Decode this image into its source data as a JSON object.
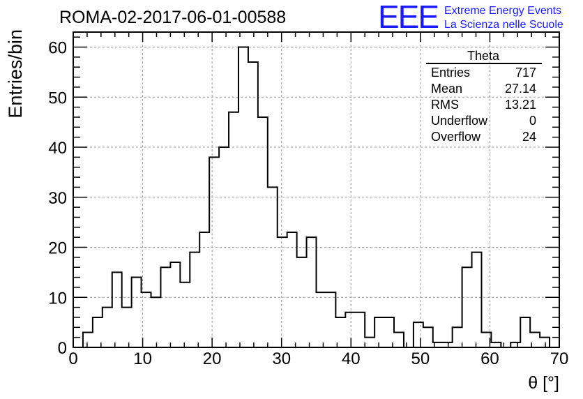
{
  "header": {
    "title": "ROMA-02-2017-06-01-00588",
    "logo_text": "EEE",
    "logo_line1": "Extreme Energy Events",
    "logo_line2": "La Scienza nelle Scuole",
    "logo_color": "#1a1aff"
  },
  "stats_box": {
    "title": "Theta",
    "rows": [
      {
        "label": "Entries",
        "value": "717"
      },
      {
        "label": "Mean",
        "value": "27.14"
      },
      {
        "label": "RMS",
        "value": "13.21"
      },
      {
        "label": "Underflow",
        "value": "0"
      },
      {
        "label": "Overflow",
        "value": "24"
      }
    ]
  },
  "chart_data": {
    "type": "histogram",
    "title": "ROMA-02-2017-06-01-00588",
    "xlabel": "θ [°]",
    "ylabel": "Entries/bin",
    "xlim": [
      0,
      70
    ],
    "ylim": [
      0,
      63
    ],
    "xticks": [
      0,
      10,
      20,
      30,
      40,
      50,
      60,
      70
    ],
    "yticks": [
      0,
      10,
      20,
      30,
      40,
      50,
      60
    ],
    "grid": true,
    "bin_edges_start": 0,
    "bin_width": 1.4,
    "values": [
      0,
      3,
      6,
      8,
      15,
      8,
      14,
      11,
      10,
      16,
      17,
      13,
      19,
      23,
      38,
      40,
      47,
      60,
      57,
      46,
      32,
      22,
      23,
      18,
      22,
      11,
      11,
      6,
      7,
      7,
      2,
      6,
      6,
      3,
      0,
      5,
      4,
      1,
      1,
      4,
      16,
      19,
      3,
      1,
      0,
      1,
      6,
      3,
      2,
      0
    ],
    "line_color": "#000000"
  }
}
